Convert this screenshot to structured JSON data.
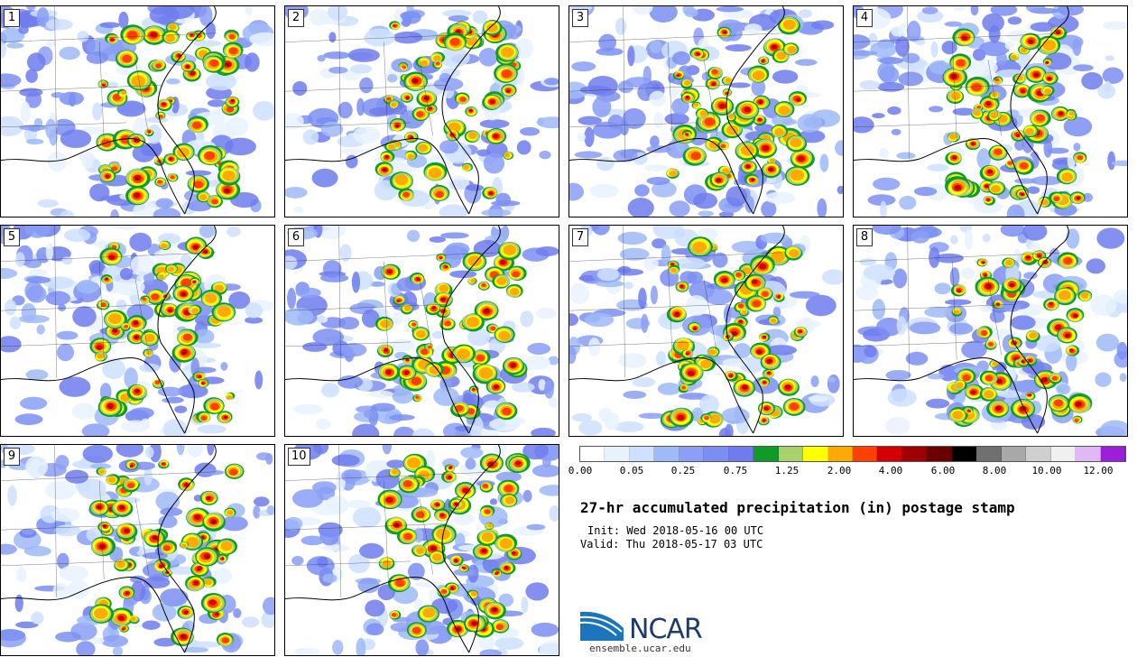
{
  "panels": [
    {
      "label": "1"
    },
    {
      "label": "2"
    },
    {
      "label": "3"
    },
    {
      "label": "4"
    },
    {
      "label": "5"
    },
    {
      "label": "6"
    },
    {
      "label": "7"
    },
    {
      "label": "8"
    },
    {
      "label": "9"
    },
    {
      "label": "10"
    }
  ],
  "colorbar": {
    "colors": [
      "#ffffff",
      "#e8f2ff",
      "#cfe0ff",
      "#9fbaf8",
      "#8a9ff5",
      "#7b8ff2",
      "#6f7ced",
      "#0e9b26",
      "#a9d16b",
      "#ffff00",
      "#ffaa00",
      "#ff4000",
      "#d40000",
      "#a00000",
      "#6a0000",
      "#000000",
      "#707070",
      "#a8a8a8",
      "#cfcfcf",
      "#f0f0f0",
      "#e0b8f5",
      "#9b1ed8"
    ],
    "tick_labels": [
      "0.00",
      "0.05",
      "0.25",
      "0.75",
      "1.25",
      "2.00",
      "4.00",
      "6.00",
      "8.00",
      "10.00",
      "12.00"
    ]
  },
  "title": "27-hr accumulated precipitation (in) postage stamp",
  "init": "Init: Wed 2018-05-16 00 UTC",
  "valid": "Valid: Thu 2018-05-17 03 UTC",
  "logo": {
    "text": "NCAR",
    "url": "ensemble.ucar.edu"
  }
}
